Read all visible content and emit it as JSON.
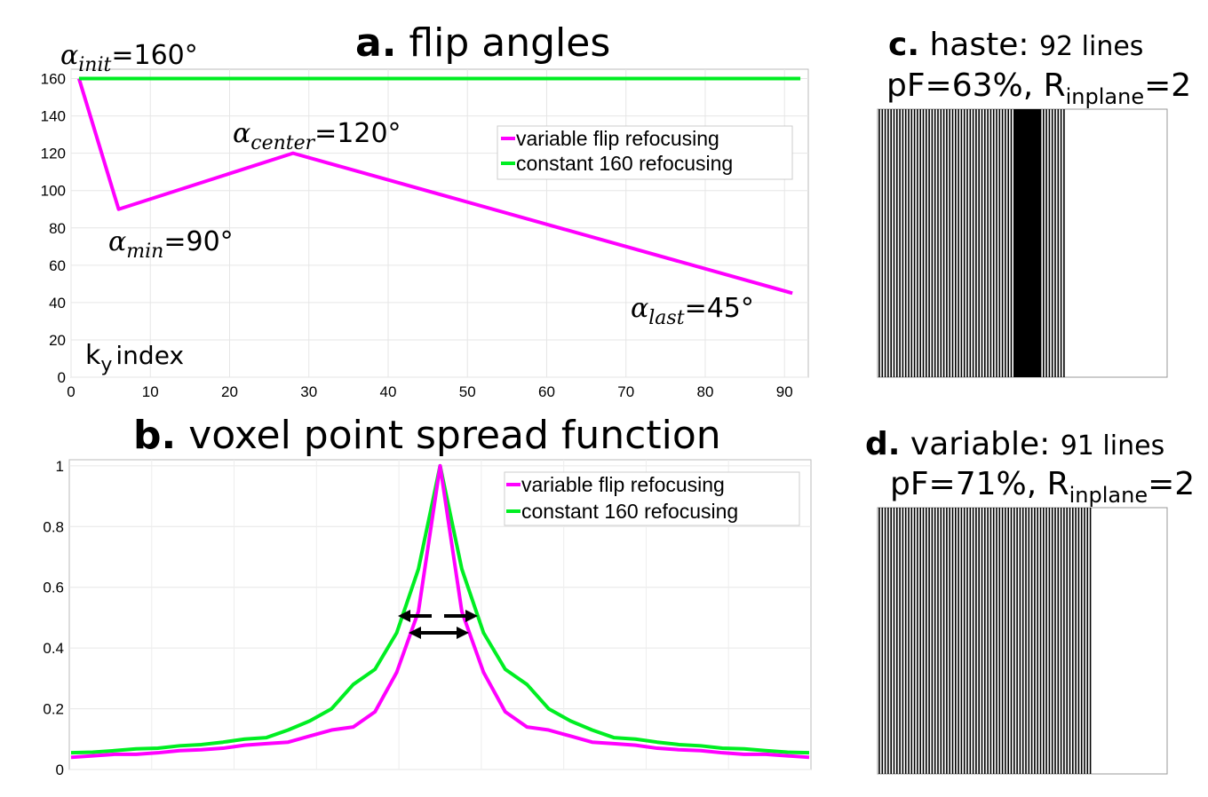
{
  "colors": {
    "variable": "#ff00ff",
    "constant": "#00ee22"
  },
  "panel_a": {
    "title_letter": "a.",
    "title_text": "flip angles",
    "xlabel": "k",
    "xlabel_sub": "y",
    "xlabel_rest": "index",
    "annotations": [
      {
        "id": "init",
        "greek": "α",
        "sub": "init",
        "value": "=160°"
      },
      {
        "id": "center",
        "greek": "α",
        "sub": "center",
        "value": "=120°"
      },
      {
        "id": "min",
        "greek": "α",
        "sub": "min",
        "value": "=90°"
      },
      {
        "id": "last",
        "greek": "α",
        "sub": "last",
        "value": "=45°"
      }
    ]
  },
  "panel_b": {
    "title_letter": "b.",
    "title_text": "voxel point spread function"
  },
  "panel_c": {
    "letter": "c.",
    "name": "haste:",
    "lines": "92 lines",
    "line2_pre": "pF=63%, R",
    "line2_sub": "inplane",
    "line2_post": "=2"
  },
  "panel_d": {
    "letter": "d.",
    "name": "variable:",
    "lines": "91 lines",
    "line2_pre": "pF=71%, R",
    "line2_sub": "inplane",
    "line2_post": "=2"
  },
  "chart_data": [
    {
      "type": "line",
      "title": "a. flip angles",
      "xlabel": "ky index",
      "ylabel": "",
      "xlim": [
        0,
        93
      ],
      "ylim": [
        0,
        165
      ],
      "xticks": [
        0,
        10,
        20,
        30,
        40,
        50,
        60,
        70,
        80,
        90
      ],
      "yticks": [
        0,
        20,
        40,
        60,
        80,
        100,
        120,
        140,
        160
      ],
      "grid": true,
      "legend_position": "top-right",
      "series": [
        {
          "name": "variable flip refocusing",
          "x": [
            1,
            6,
            28,
            91
          ],
          "y": [
            160,
            90,
            120,
            45
          ]
        },
        {
          "name": "constant 160 refocusing",
          "x": [
            1,
            92
          ],
          "y": [
            160,
            160
          ]
        }
      ]
    },
    {
      "type": "line",
      "title": "b. voxel point spread function",
      "xlabel": "",
      "ylabel": "",
      "ylim": [
        0,
        1.02
      ],
      "yticks": [
        0,
        0.2,
        0.4,
        0.6,
        0.8,
        1
      ],
      "grid": true,
      "legend_position": "top-right",
      "series": [
        {
          "name": "variable flip refocusing",
          "values": [
            0.04,
            0.045,
            0.05,
            0.05,
            0.055,
            0.062,
            0.065,
            0.07,
            0.08,
            0.085,
            0.09,
            0.11,
            0.13,
            0.14,
            0.19,
            0.32,
            0.52,
            1.0,
            0.52,
            0.32,
            0.19,
            0.14,
            0.13,
            0.11,
            0.09,
            0.085,
            0.08,
            0.07,
            0.065,
            0.062,
            0.055,
            0.05,
            0.05,
            0.045,
            0.04
          ]
        },
        {
          "name": "constant 160 refocusing",
          "values": [
            0.055,
            0.057,
            0.062,
            0.068,
            0.07,
            0.078,
            0.082,
            0.09,
            0.1,
            0.105,
            0.13,
            0.16,
            0.2,
            0.28,
            0.33,
            0.45,
            0.66,
            1.0,
            0.66,
            0.45,
            0.33,
            0.28,
            0.2,
            0.16,
            0.13,
            0.105,
            0.1,
            0.09,
            0.082,
            0.078,
            0.07,
            0.068,
            0.062,
            0.057,
            0.055
          ]
        }
      ]
    },
    {
      "type": "heatmap",
      "title": "c. haste: 92 lines",
      "sampled_lines": 92,
      "partial_fourier_percent": 63,
      "R_inplane": 2
    },
    {
      "type": "heatmap",
      "title": "d. variable: 91 lines",
      "sampled_lines": 91,
      "partial_fourier_percent": 71,
      "R_inplane": 2
    }
  ]
}
